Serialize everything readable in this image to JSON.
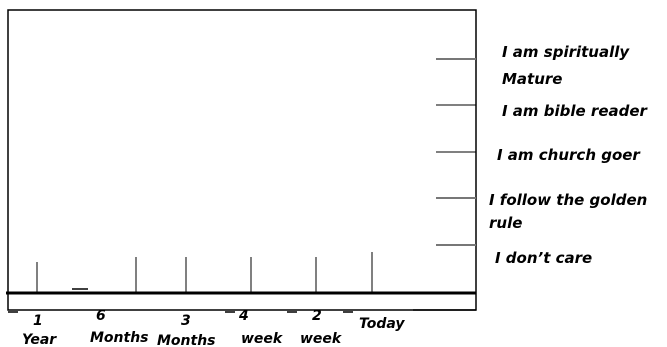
{
  "levels": [
    {
      "lines": [
        "I am spiritually",
        "Mature"
      ]
    },
    {
      "lines": [
        "I am bible reader"
      ]
    },
    {
      "lines": [
        "I am church goer"
      ]
    },
    {
      "lines": [
        "I follow the golden",
        "rule"
      ]
    },
    {
      "lines": [
        "I don’t care"
      ]
    }
  ],
  "timeline": [
    {
      "lines": [
        "1",
        "Year"
      ]
    },
    {
      "lines": [
        "6",
        "Months"
      ]
    },
    {
      "lines": [
        "3",
        "Months"
      ]
    },
    {
      "lines": [
        "4",
        "week"
      ]
    },
    {
      "lines": [
        "2",
        "week"
      ]
    },
    {
      "lines": [
        "Today"
      ]
    }
  ]
}
